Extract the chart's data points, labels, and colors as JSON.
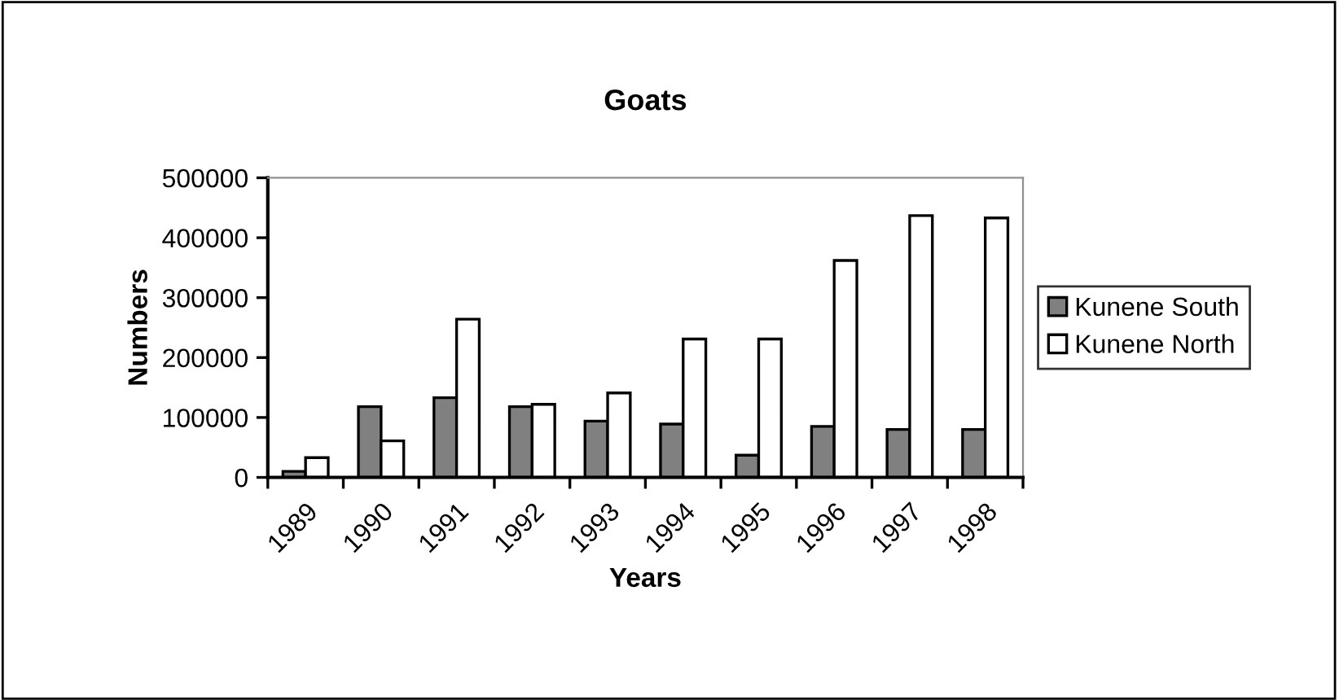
{
  "chart_data": {
    "type": "bar",
    "title": "Goats",
    "xlabel": "Years",
    "ylabel": "Numbers",
    "categories": [
      "1989",
      "1990",
      "1991",
      "1992",
      "1993",
      "1994",
      "1995",
      "1996",
      "1997",
      "1998"
    ],
    "series": [
      {
        "name": "Kunene South",
        "color": "#808080",
        "values": [
          10000,
          118000,
          133000,
          118000,
          94000,
          89000,
          37000,
          85000,
          80000,
          80000
        ]
      },
      {
        "name": "Kunene North",
        "color": "#ffffff",
        "values": [
          33000,
          61000,
          264000,
          122000,
          141000,
          231000,
          231000,
          362000,
          437000,
          433000
        ]
      }
    ],
    "ylim": [
      0,
      500000
    ],
    "yticks": [
      0,
      100000,
      200000,
      300000,
      400000,
      500000
    ],
    "grid": false,
    "legend": "right"
  }
}
